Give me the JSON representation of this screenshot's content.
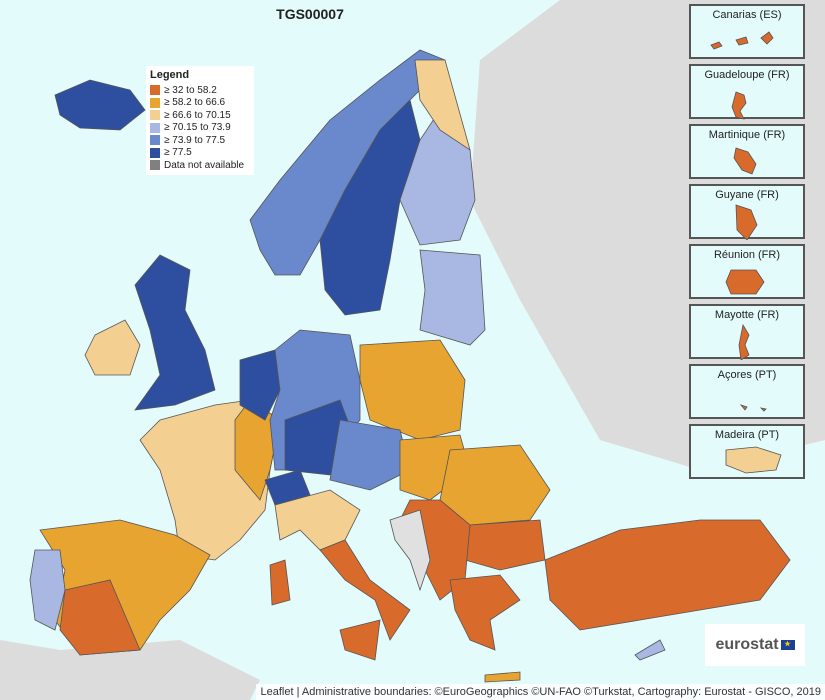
{
  "title": "TGS00007",
  "legend": {
    "title": "Legend",
    "items": [
      {
        "label": "≥ 32 to 58.2",
        "color": "#d86a2c"
      },
      {
        "label": "≥ 58.2 to 66.6",
        "color": "#e8a431"
      },
      {
        "label": "≥ 66.6 to 70.15",
        "color": "#f3cf92"
      },
      {
        "label": "≥ 70.15 to 73.9",
        "color": "#a9b8e2"
      },
      {
        "label": "≥ 73.9 to 77.5",
        "color": "#6a88cc"
      },
      {
        "label": "≥ 77.5",
        "color": "#2e4f9f"
      },
      {
        "label": "Data not available",
        "color": "#808080"
      }
    ]
  },
  "insets": [
    {
      "label": "Canarias (ES)",
      "color": "#d86a2c"
    },
    {
      "label": "Guadeloupe (FR)",
      "color": "#d86a2c"
    },
    {
      "label": "Martinique (FR)",
      "color": "#d86a2c"
    },
    {
      "label": "Guyane (FR)",
      "color": "#d86a2c"
    },
    {
      "label": "Réunion (FR)",
      "color": "#d86a2c"
    },
    {
      "label": "Mayotte (FR)",
      "color": "#d86a2c"
    },
    {
      "label": "Açores (PT)",
      "color": "#d86a2c"
    },
    {
      "label": "Madeira (PT)",
      "color": "#f3cf92"
    }
  ],
  "logo": "eurostat",
  "attribution": "Leaflet | Administrative boundaries: ©EuroGeographics ©UN-FAO ©Turkstat, Cartography: Eurostat - GISCO, 2019"
}
